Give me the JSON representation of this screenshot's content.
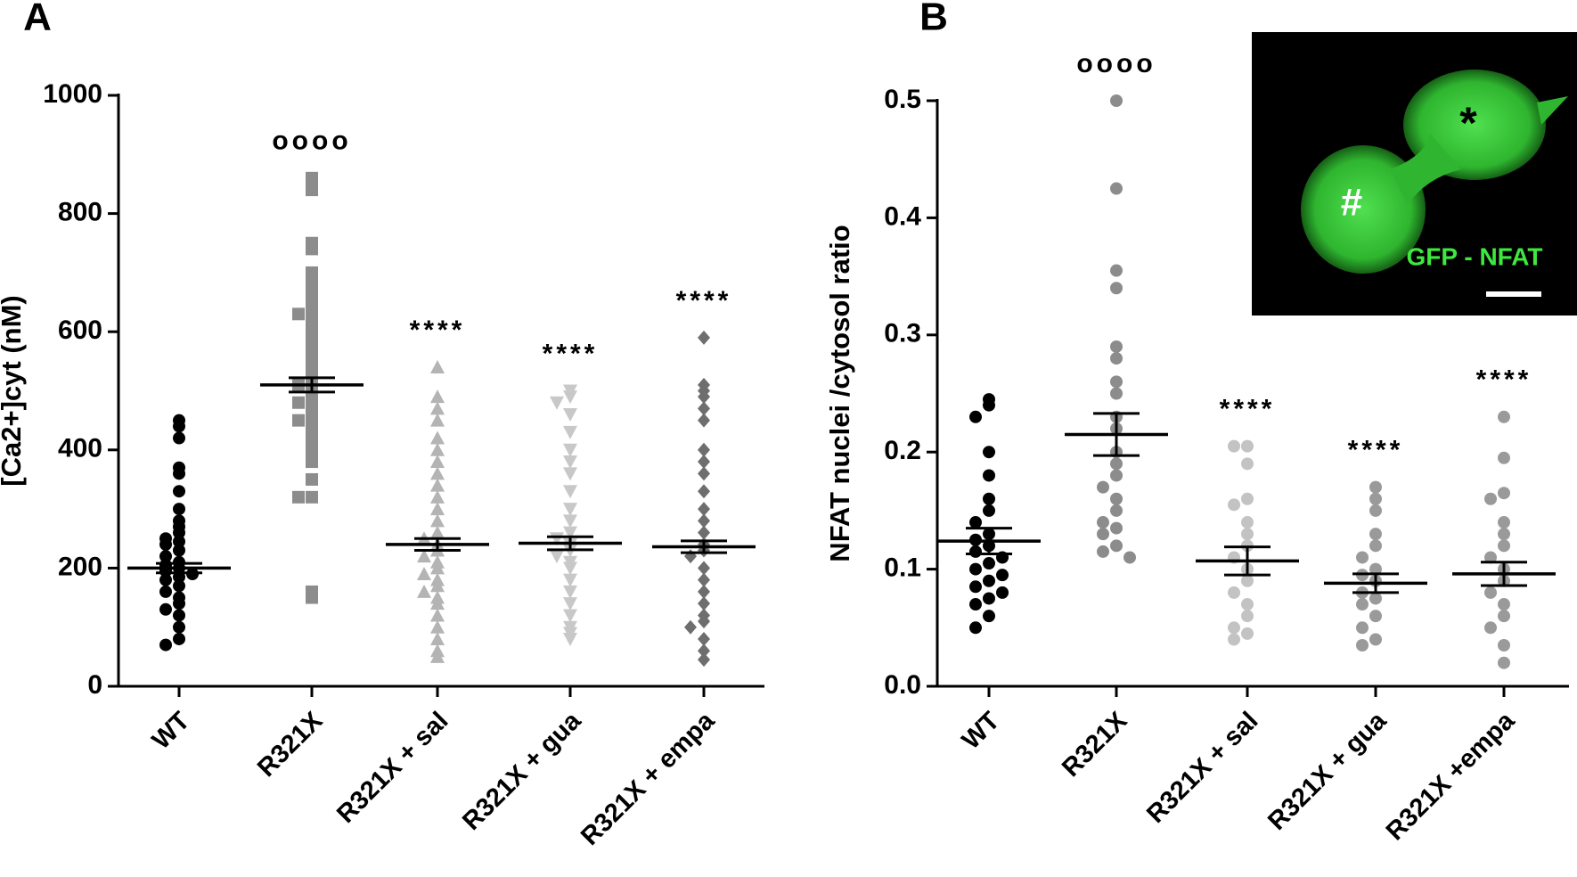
{
  "chart_data": [
    {
      "type": "dot",
      "panel": "A",
      "ylabel": "[Ca2+]cyt (nM)",
      "categories": [
        "WT",
        "R321X",
        "R321X + sal",
        "R321X + gua",
        "R321X + empa"
      ],
      "ylim": [
        0,
        1000
      ],
      "yticks": [
        0,
        200,
        400,
        600,
        800,
        1000
      ],
      "groups": [
        {
          "color": "#000000",
          "marker": "circle",
          "mean": 200,
          "sem": 8,
          "values": [
            450,
            440,
            420,
            370,
            360,
            330,
            300,
            280,
            270,
            260,
            250,
            245,
            240,
            230,
            220,
            210,
            205,
            200,
            195,
            190,
            185,
            180,
            170,
            160,
            150,
            140,
            130,
            120,
            100,
            80,
            70
          ]
        },
        {
          "color": "#8c8c8c",
          "marker": "square",
          "mean": 510,
          "sem": 12,
          "annotation": "oooo",
          "values": [
            860,
            840,
            750,
            740,
            700,
            680,
            660,
            650,
            640,
            630,
            620,
            600,
            590,
            580,
            560,
            540,
            530,
            520,
            510,
            500,
            490,
            480,
            470,
            460,
            450,
            440,
            420,
            400,
            380,
            350,
            320,
            320,
            160,
            150
          ]
        },
        {
          "color": "#b4b4b4",
          "marker": "triangle-up",
          "mean": 240,
          "sem": 10,
          "annotation": "****",
          "values": [
            540,
            490,
            470,
            450,
            420,
            400,
            380,
            360,
            340,
            320,
            300,
            280,
            260,
            250,
            240,
            230,
            220,
            210,
            200,
            190,
            180,
            170,
            160,
            150,
            140,
            120,
            100,
            80,
            60,
            50
          ]
        },
        {
          "color": "#c8c8c8",
          "marker": "triangle-down",
          "mean": 242,
          "sem": 11,
          "annotation": "****",
          "values": [
            500,
            490,
            480,
            460,
            430,
            400,
            380,
            360,
            330,
            300,
            280,
            260,
            250,
            240,
            230,
            220,
            210,
            200,
            180,
            160,
            140,
            120,
            100,
            90,
            80
          ]
        },
        {
          "color": "#6e6e6e",
          "marker": "diamond",
          "mean": 236,
          "sem": 10,
          "annotation": "****",
          "values": [
            590,
            510,
            500,
            490,
            470,
            450,
            400,
            380,
            360,
            330,
            300,
            280,
            260,
            240,
            230,
            220,
            200,
            180,
            160,
            140,
            120,
            110,
            100,
            80,
            60,
            45
          ]
        }
      ]
    },
    {
      "type": "dot",
      "panel": "B",
      "ylabel": "NFAT nuclei /cytosol ratio",
      "categories": [
        "WT",
        "R321X",
        "R321X + sal",
        "R321X + gua",
        "R321X +empa"
      ],
      "ylim": [
        0,
        0.5
      ],
      "yticks": [
        {
          "value": 0,
          "label": "0.0"
        },
        0.1,
        0.2,
        0.3,
        0.4,
        0.5
      ],
      "groups": [
        {
          "color": "#000000",
          "marker": "circle",
          "mean": 0.124,
          "sem": 0.011,
          "values": [
            0.245,
            0.24,
            0.23,
            0.2,
            0.18,
            0.16,
            0.15,
            0.14,
            0.13,
            0.125,
            0.12,
            0.115,
            0.11,
            0.105,
            0.1,
            0.095,
            0.09,
            0.085,
            0.08,
            0.075,
            0.07,
            0.06,
            0.05
          ]
        },
        {
          "color": "#8c8c8c",
          "marker": "circle",
          "mean": 0.215,
          "sem": 0.018,
          "annotation": "oooo",
          "values": [
            0.5,
            0.425,
            0.355,
            0.34,
            0.29,
            0.28,
            0.26,
            0.25,
            0.23,
            0.22,
            0.2,
            0.19,
            0.18,
            0.17,
            0.16,
            0.15,
            0.14,
            0.135,
            0.13,
            0.12,
            0.115,
            0.11
          ]
        },
        {
          "color": "#c3c3c3",
          "marker": "circle",
          "mean": 0.107,
          "sem": 0.012,
          "annotation": "****",
          "values": [
            0.205,
            0.205,
            0.19,
            0.16,
            0.155,
            0.14,
            0.13,
            0.12,
            0.11,
            0.1,
            0.09,
            0.08,
            0.07,
            0.06,
            0.05,
            0.045,
            0.04
          ]
        },
        {
          "color": "#9a9a9a",
          "marker": "circle",
          "mean": 0.088,
          "sem": 0.008,
          "annotation": "****",
          "values": [
            0.17,
            0.16,
            0.15,
            0.13,
            0.12,
            0.11,
            0.1,
            0.095,
            0.09,
            0.08,
            0.075,
            0.07,
            0.06,
            0.05,
            0.04,
            0.035
          ]
        },
        {
          "color": "#9a9a9a",
          "marker": "circle",
          "mean": 0.096,
          "sem": 0.01,
          "annotation": "****",
          "values": [
            0.23,
            0.195,
            0.165,
            0.16,
            0.14,
            0.13,
            0.12,
            0.11,
            0.1,
            0.09,
            0.08,
            0.07,
            0.06,
            0.05,
            0.035,
            0.02
          ]
        }
      ]
    }
  ],
  "inset": {
    "label": "GFP - NFAT",
    "mark_left": "#",
    "mark_right": "*"
  }
}
